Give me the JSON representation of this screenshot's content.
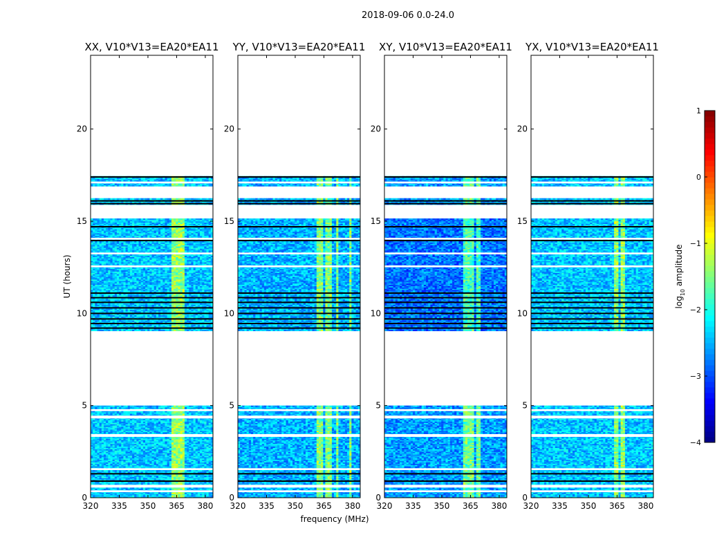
{
  "chart_data": {
    "type": "heatmap",
    "suptitle": "2018-09-06 0.0-24.0",
    "xlabel": "frequency (MHz)",
    "ylabel": "UT (hours)",
    "xlim": [
      320,
      384
    ],
    "ylim": [
      0,
      24
    ],
    "xticks": [
      320,
      335,
      350,
      365,
      380
    ],
    "yticks": [
      0,
      5,
      10,
      15,
      20
    ],
    "colorbar": {
      "label": "log10 amplitude",
      "label_prefix": "log",
      "label_sub": "10",
      "label_suffix": " amplitude",
      "range": [
        -4,
        1
      ],
      "ticks": [
        -4,
        -3,
        -2,
        -1,
        0,
        1
      ],
      "colormap": "jet"
    },
    "data_blocks_hours": [
      [
        0.0,
        5.0
      ],
      [
        9.05,
        15.15
      ],
      [
        15.9,
        16.25
      ],
      [
        16.9,
        17.45
      ]
    ],
    "flagged_bands_hours": [
      [
        0.3,
        0.4
      ],
      [
        0.55,
        0.7
      ],
      [
        1.5,
        1.6
      ],
      [
        3.3,
        3.45
      ],
      [
        4.3,
        4.45
      ],
      [
        4.7,
        4.8
      ],
      [
        12.5,
        12.6
      ],
      [
        13.2,
        13.3
      ],
      [
        14.0,
        14.1
      ],
      [
        17.05,
        17.15
      ]
    ],
    "dark_rows_hours": [
      0.9,
      1.3,
      9.2,
      9.45,
      9.7,
      10.0,
      10.3,
      10.6,
      10.85,
      11.1,
      13.95,
      14.7,
      15.95,
      16.1,
      17.4
    ],
    "panels": [
      {
        "title": "XX, V10*V13=EA20*EA11",
        "baseline_log10": -2.4,
        "night_offset": 0.0,
        "rfi_bands_mhz": [
          [
            362,
            364
          ],
          [
            365,
            368
          ],
          [
            368.5,
            369.5
          ]
        ]
      },
      {
        "title": "YY, V10*V13=EA20*EA11",
        "baseline_log10": -2.5,
        "night_offset": 0.0,
        "rfi_bands_mhz": [
          [
            361.5,
            364.5
          ],
          [
            365.5,
            369.5
          ],
          [
            372,
            373
          ],
          [
            378,
            379.5
          ]
        ]
      },
      {
        "title": "XY, V10*V13=EA20*EA11",
        "baseline_log10": -2.6,
        "night_offset": -0.2,
        "rfi_bands_mhz": [
          [
            361.5,
            364.5
          ],
          [
            365,
            367
          ],
          [
            367.5,
            370.5
          ]
        ]
      },
      {
        "title": "YX, V10*V13=EA20*EA11",
        "baseline_log10": -2.4,
        "night_offset": 0.0,
        "rfi_bands_mhz": [
          [
            364,
            366
          ],
          [
            367,
            369
          ]
        ]
      }
    ]
  }
}
